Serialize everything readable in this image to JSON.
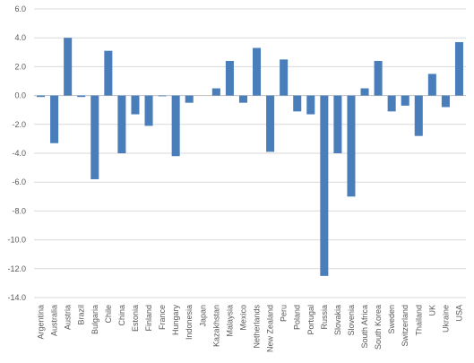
{
  "chart_data": {
    "type": "bar",
    "title": "",
    "xlabel": "",
    "ylabel": "",
    "ylim": [
      -14,
      6
    ],
    "yticks": [
      6,
      4,
      2,
      0,
      -2,
      -4,
      -6,
      -8,
      -10,
      -12,
      -14
    ],
    "ytick_labels": [
      "6.0",
      "4.0",
      "2.0",
      "0.0",
      "-2.0",
      "-4.0",
      "-6.0",
      "-8.0",
      "-10.0",
      "-12.0",
      "-14.0"
    ],
    "grid": true,
    "legend": "none",
    "bar_color": "#4a7ebb",
    "categories": [
      "Argentina",
      "Australia",
      "Austria",
      "Brazil",
      "Bulgaria",
      "Chile",
      "China",
      "Estonia",
      "Finland",
      "France",
      "Hungary",
      "Indonesia",
      "Japan",
      "Kazakhstan",
      "Malaysia",
      "Mexico",
      "Netherlands",
      "New Zealand",
      "Peru",
      "Poland",
      "Portugal",
      "Russia",
      "Slovakia",
      "Slovenia",
      "South Africa",
      "South Korea",
      "Sweden",
      "Switzerland",
      "Thailand",
      "UK",
      "Ukraine",
      "USA"
    ],
    "values": [
      -0.1,
      -3.3,
      4.0,
      -0.1,
      -5.8,
      3.1,
      -4.0,
      -1.3,
      -2.1,
      -0.05,
      -4.2,
      -0.5,
      0.0,
      0.5,
      2.4,
      -0.5,
      3.3,
      -3.9,
      2.5,
      -1.1,
      -1.3,
      -12.5,
      -4.0,
      -7.0,
      0.5,
      2.4,
      -1.1,
      -0.7,
      -2.8,
      1.5,
      -0.8,
      3.7
    ]
  }
}
